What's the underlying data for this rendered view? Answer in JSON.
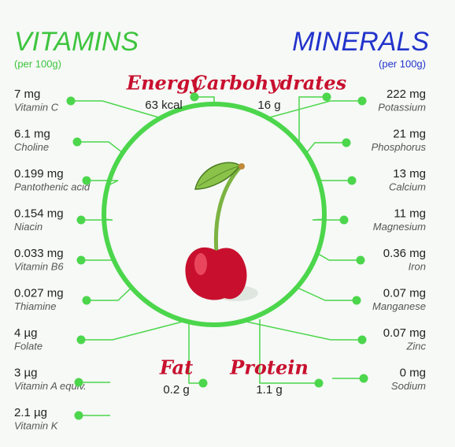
{
  "vitamins": {
    "title": "VITAMINS",
    "subtitle": "(per 100g)",
    "items": [
      {
        "amount": "7 mg",
        "name": "Vitamin C"
      },
      {
        "amount": "6.1 mg",
        "name": "Choline"
      },
      {
        "amount": "0.199 mg",
        "name": "Pantothenic acid"
      },
      {
        "amount": "0.154 mg",
        "name": "Niacin"
      },
      {
        "amount": "0.033 mg",
        "name": "Vitamin B6"
      },
      {
        "amount": "0.027 mg",
        "name": "Thiamine"
      },
      {
        "amount": "4 µg",
        "name": "Folate"
      },
      {
        "amount": "3 µg",
        "name": "Vitamin A equiv."
      },
      {
        "amount": "2.1 µg",
        "name": "Vitamin K"
      }
    ]
  },
  "minerals": {
    "title": "MINERALS",
    "subtitle": "(per 100g)",
    "items": [
      {
        "amount": "222 mg",
        "name": "Potassium"
      },
      {
        "amount": "21 mg",
        "name": "Phosphorus"
      },
      {
        "amount": "13 mg",
        "name": "Calcium"
      },
      {
        "amount": "11 mg",
        "name": "Magnesium"
      },
      {
        "amount": "0.36 mg",
        "name": "Iron"
      },
      {
        "amount": "0.07 mg",
        "name": "Manganese"
      },
      {
        "amount": "0.07 mg",
        "name": "Zinc"
      },
      {
        "amount": "0 mg",
        "name": "Sodium"
      }
    ]
  },
  "nutrients": [
    {
      "label": "Energy",
      "value": "63 kcal"
    },
    {
      "label": "Carbohydrates",
      "value": "16 g"
    },
    {
      "label": "Fat",
      "value": "0.2 g"
    },
    {
      "label": "Protein",
      "value": "1.1 g"
    }
  ]
}
